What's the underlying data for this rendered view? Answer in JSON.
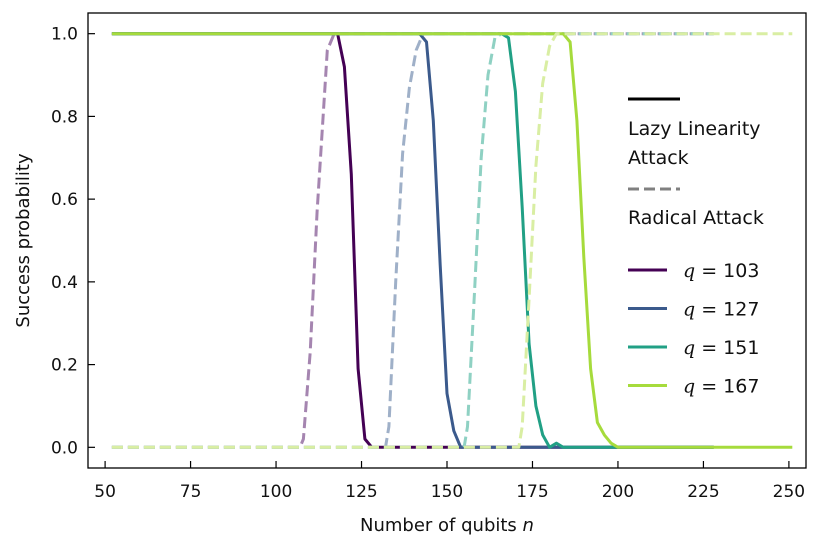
{
  "chart_data": {
    "type": "line",
    "title": "",
    "xlabel": "Number of qubits",
    "xlabel_var": "n",
    "ylabel": "Success probability",
    "xlim": [
      45,
      255
    ],
    "ylim": [
      -0.05,
      1.05
    ],
    "xticks": [
      50,
      75,
      100,
      125,
      150,
      175,
      200,
      225,
      250
    ],
    "yticks": [
      0.0,
      0.2,
      0.4,
      0.6,
      0.8,
      1.0
    ],
    "ytick_labels": [
      "0.0",
      "0.2",
      "0.4",
      "0.6",
      "0.8",
      "1.0"
    ],
    "grid": false,
    "legend": {
      "placement": "right",
      "style_entries": [
        {
          "label_lines": [
            "Lazy Linearity",
            "Attack"
          ],
          "style": "solid",
          "color": "#000000"
        },
        {
          "label_lines": [
            "Radical Attack"
          ],
          "style": "dashed",
          "color": "#808080"
        }
      ],
      "q_entries": [
        {
          "var": "q",
          "label": "= 103",
          "color": "#440154"
        },
        {
          "var": "q",
          "label": "= 127",
          "color": "#3b5a8c"
        },
        {
          "var": "q",
          "label": "= 151",
          "color": "#21a085"
        },
        {
          "var": "q",
          "label": "= 167",
          "color": "#a6db3c"
        }
      ]
    },
    "series": [
      {
        "attack": "Lazy Linearity Attack",
        "q": 103,
        "style": "solid",
        "color": "#440154",
        "x": [
          52,
          117,
          118,
          120,
          122,
          124,
          126,
          128,
          130,
          135,
          228
        ],
        "y": [
          1.0,
          1.0,
          1.0,
          0.92,
          0.66,
          0.19,
          0.02,
          0.0,
          0.0,
          0.0,
          0.0
        ]
      },
      {
        "attack": "Radical Attack",
        "q": 103,
        "style": "dashed",
        "color": "#a585b0",
        "x": [
          52,
          107,
          108,
          110,
          112,
          114,
          115,
          117,
          118,
          120,
          228
        ],
        "y": [
          0.0,
          0.0,
          0.02,
          0.23,
          0.57,
          0.83,
          0.96,
          1.0,
          1.0,
          1.0,
          1.0
        ]
      },
      {
        "attack": "Lazy Linearity Attack",
        "q": 127,
        "style": "solid",
        "color": "#3b5a8c",
        "x": [
          52,
          142,
          144,
          146,
          148,
          150,
          152,
          154,
          156,
          160,
          228
        ],
        "y": [
          1.0,
          1.0,
          0.98,
          0.79,
          0.44,
          0.13,
          0.04,
          0.0,
          0.0,
          0.0,
          0.0
        ]
      },
      {
        "attack": "Radical Attack",
        "q": 127,
        "style": "dashed",
        "color": "#9fb0c8",
        "x": [
          52,
          132,
          133,
          135,
          137,
          139,
          141,
          143,
          145,
          228
        ],
        "y": [
          0.0,
          0.0,
          0.05,
          0.4,
          0.71,
          0.87,
          0.96,
          1.0,
          1.0,
          1.0
        ]
      },
      {
        "attack": "Lazy Linearity Attack",
        "q": 151,
        "style": "solid",
        "color": "#21a085",
        "x": [
          52,
          166,
          168,
          170,
          172,
          174,
          176,
          178,
          180,
          182,
          184,
          186,
          228
        ],
        "y": [
          1.0,
          1.0,
          0.99,
          0.86,
          0.58,
          0.25,
          0.1,
          0.03,
          0.0,
          0.01,
          0.0,
          0.0,
          0.0
        ]
      },
      {
        "attack": "Radical Attack",
        "q": 151,
        "style": "dashed",
        "color": "#8fd1c3",
        "x": [
          52,
          155,
          156,
          158,
          160,
          162,
          164,
          166,
          168,
          228
        ],
        "y": [
          0.0,
          0.0,
          0.05,
          0.37,
          0.7,
          0.9,
          0.99,
          1.0,
          1.0,
          1.0
        ]
      },
      {
        "attack": "Lazy Linearity Attack",
        "q": 167,
        "style": "solid",
        "color": "#a6db3c",
        "x": [
          52,
          182,
          184,
          186,
          188,
          190,
          192,
          194,
          196,
          198,
          200,
          205,
          251
        ],
        "y": [
          1.0,
          1.0,
          1.0,
          0.98,
          0.79,
          0.46,
          0.19,
          0.06,
          0.03,
          0.01,
          0.0,
          0.0,
          0.0
        ]
      },
      {
        "attack": "Radical Attack",
        "q": 167,
        "style": "dashed",
        "color": "#d9eea3",
        "x": [
          52,
          171,
          172,
          174,
          176,
          178,
          180,
          182,
          184,
          251
        ],
        "y": [
          0.0,
          0.0,
          0.05,
          0.36,
          0.68,
          0.88,
          0.97,
          1.0,
          1.0,
          1.0
        ]
      }
    ]
  }
}
